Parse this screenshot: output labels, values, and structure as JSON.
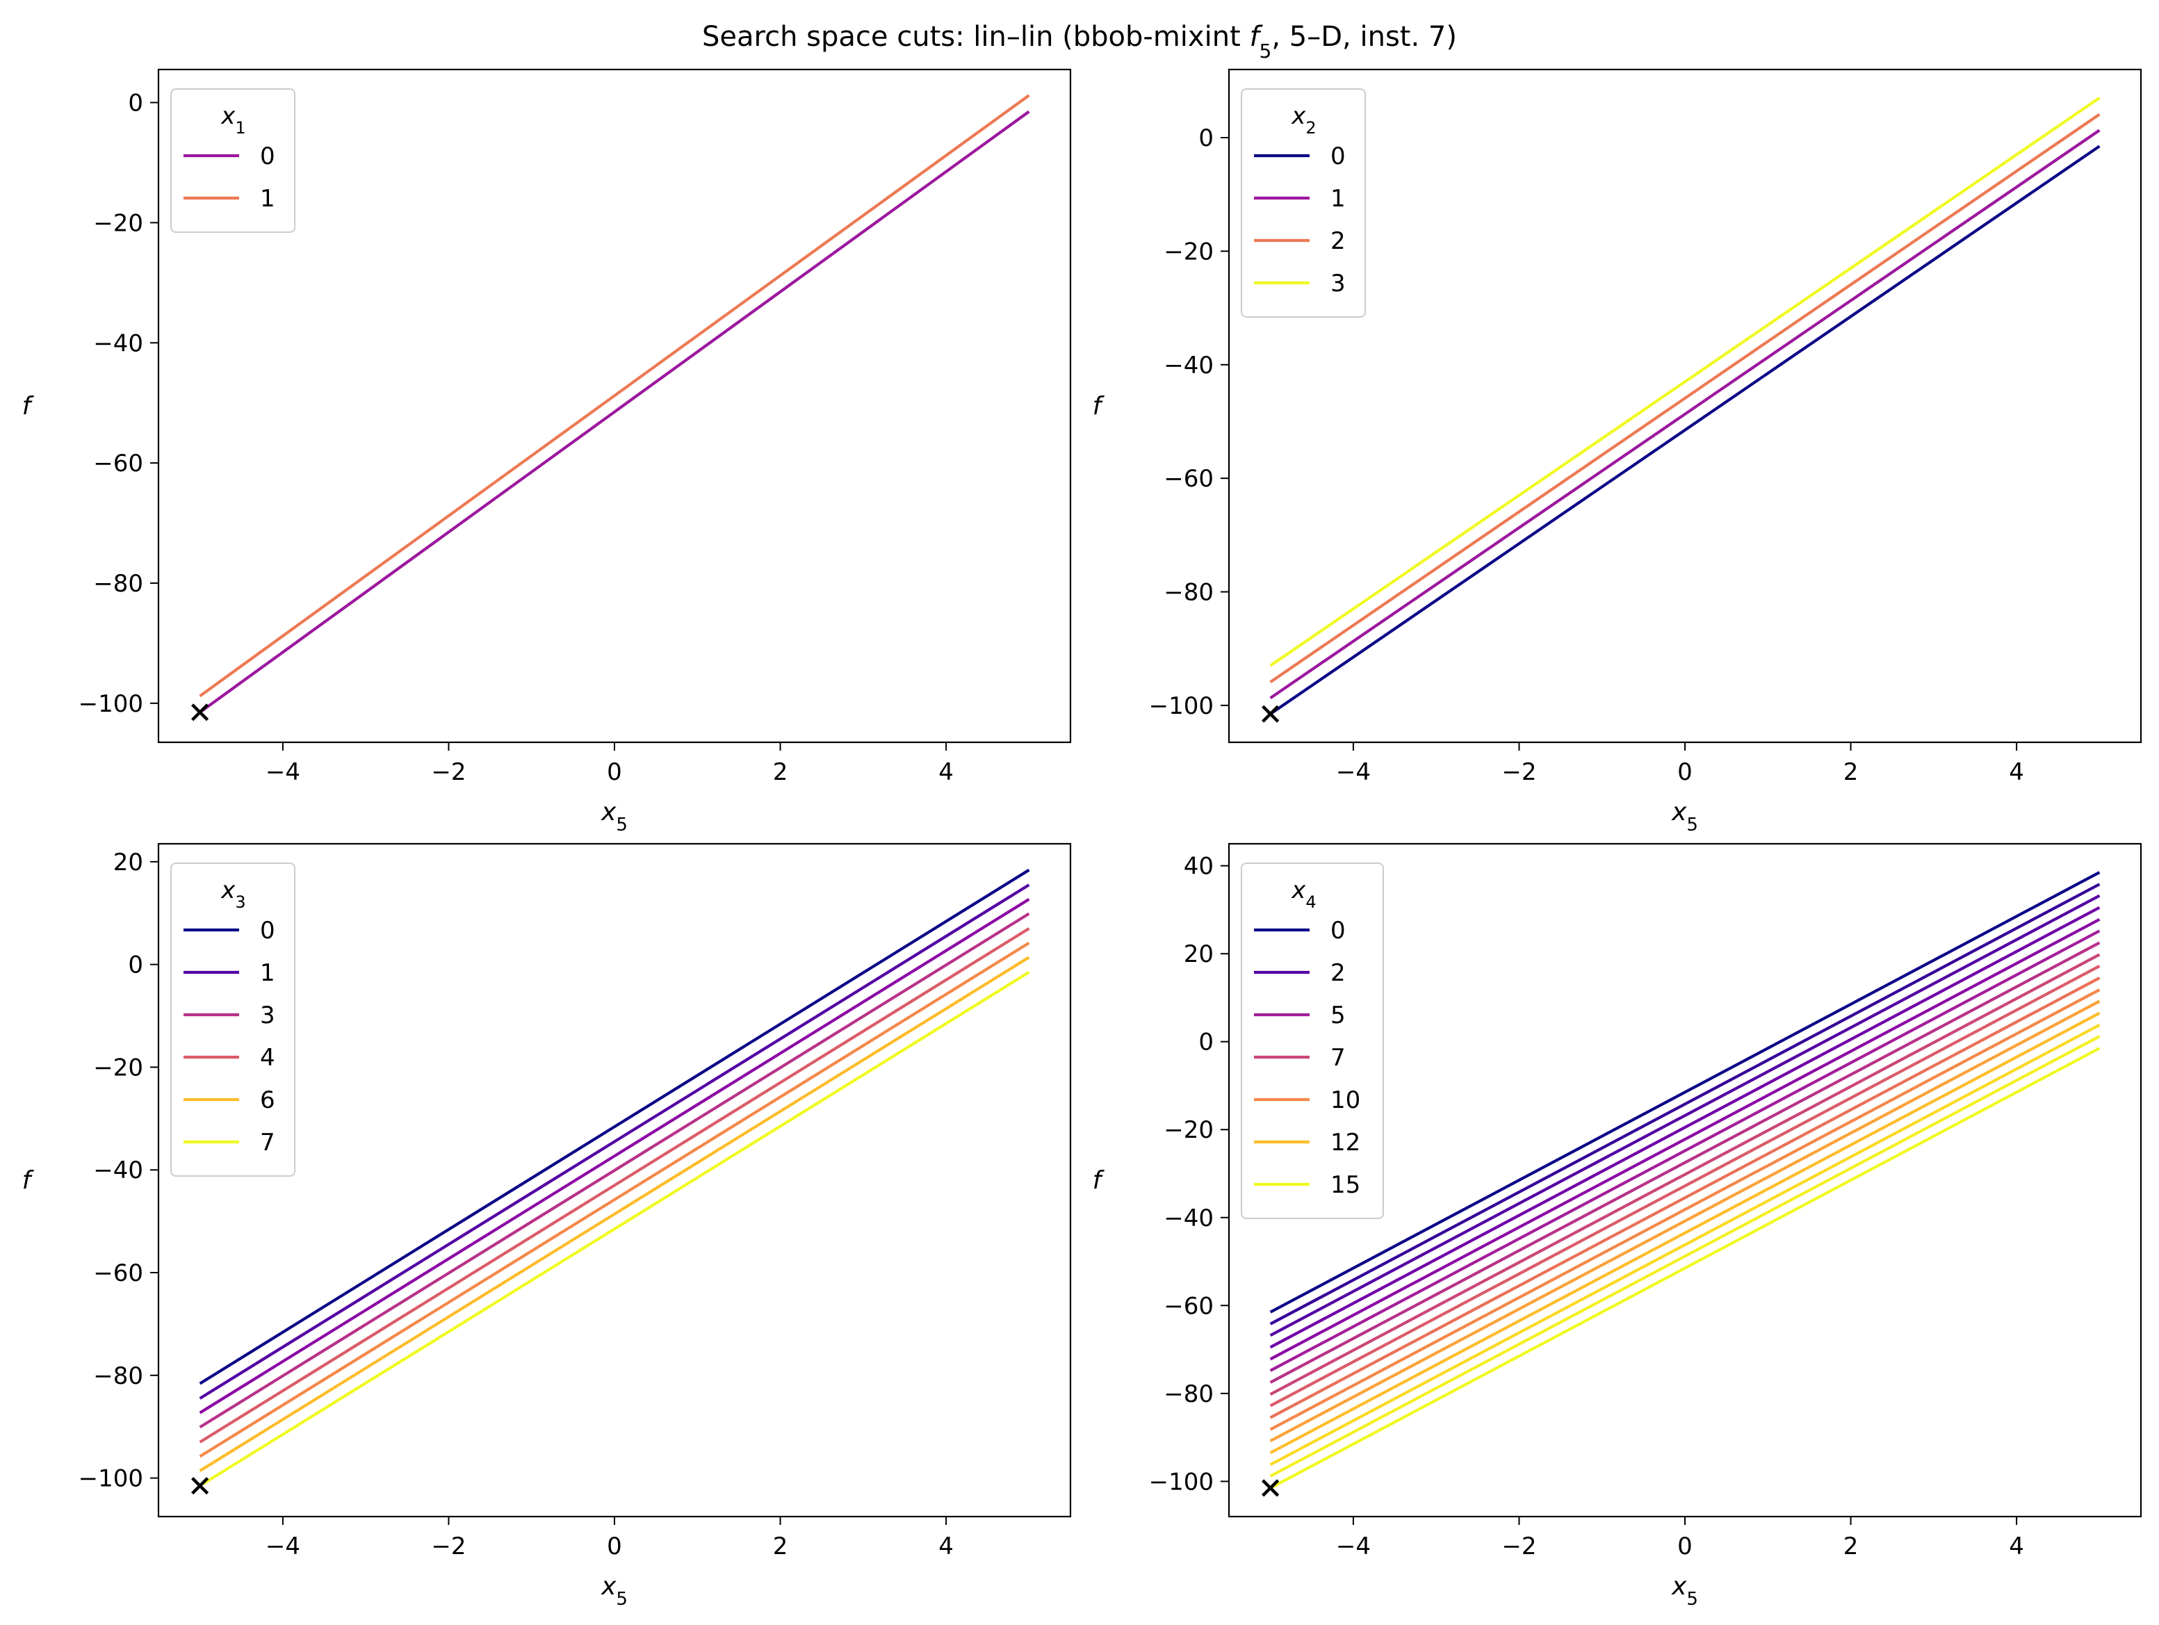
{
  "figure_title": {
    "prefix": "Search space cuts: lin–lin (bbob-mixint ",
    "func": "f",
    "func_sub": "5",
    "suffix": ", 5–D, inst. 7)"
  },
  "chart_data": [
    {
      "type": "line",
      "xlabel": "x",
      "xlabel_sub": "5",
      "ylabel": "f",
      "xlim": [
        -5.5,
        5.5
      ],
      "ylim": [
        -106.5,
        5.5
      ],
      "xticks": [
        -4,
        -2,
        0,
        2,
        4
      ],
      "yticks": [
        -100,
        -80,
        -60,
        -40,
        -20,
        0
      ],
      "legend_title": "x",
      "legend_title_sub": "1",
      "legend_position": "upper left",
      "marker": {
        "symbol": "x",
        "x": -5,
        "y": -101.5,
        "color": "#000000"
      },
      "series": [
        {
          "name": "0",
          "x": [
            -5,
            5
          ],
          "y": [
            -101.5,
            -1.5
          ],
          "color": "#9c179e"
        },
        {
          "name": "1",
          "x": [
            -5,
            5
          ],
          "y": [
            -98.8,
            1.2
          ],
          "color": "#ed7953"
        }
      ]
    },
    {
      "type": "line",
      "xlabel": "x",
      "xlabel_sub": "5",
      "ylabel": "f",
      "xlim": [
        -5.5,
        5.5
      ],
      "ylim": [
        -106.5,
        12
      ],
      "xticks": [
        -4,
        -2,
        0,
        2,
        4
      ],
      "yticks": [
        -100,
        -80,
        -60,
        -40,
        -20,
        0
      ],
      "legend_title": "x",
      "legend_title_sub": "2",
      "legend_position": "upper left",
      "marker": {
        "symbol": "x",
        "x": -5,
        "y": -101.5,
        "color": "#000000"
      },
      "series": [
        {
          "name": "0",
          "x": [
            -5,
            5
          ],
          "y": [
            -101.5,
            -1.5
          ],
          "color": "#0d0887"
        },
        {
          "name": "1",
          "x": [
            -5,
            5
          ],
          "y": [
            -98.7,
            1.3
          ],
          "color": "#9c179e"
        },
        {
          "name": "2",
          "x": [
            -5,
            5
          ],
          "y": [
            -95.9,
            4.1
          ],
          "color": "#ed7953"
        },
        {
          "name": "3",
          "x": [
            -5,
            5
          ],
          "y": [
            -93.0,
            7.0
          ],
          "color": "#f0f921"
        }
      ]
    },
    {
      "type": "line",
      "xlabel": "x",
      "xlabel_sub": "5",
      "ylabel": "f",
      "xlim": [
        -5.5,
        5.5
      ],
      "ylim": [
        -107.5,
        23.5
      ],
      "xticks": [
        -4,
        -2,
        0,
        2,
        4
      ],
      "yticks": [
        -100,
        -80,
        -60,
        -40,
        -20,
        0,
        20
      ],
      "legend_title": "x",
      "legend_title_sub": "3",
      "legend_position": "upper left",
      "marker": {
        "symbol": "x",
        "x": -5,
        "y": -101.5,
        "color": "#000000"
      },
      "series": [
        {
          "name": "0",
          "x": [
            -5,
            5
          ],
          "y": [
            -81.6,
            18.4
          ],
          "color": "#0d0887"
        },
        {
          "name": "1",
          "x": [
            -5,
            5
          ],
          "y": [
            -84.5,
            15.5
          ],
          "color": "#5302a3"
        },
        {
          "name": "",
          "x": [
            -5,
            5
          ],
          "y": [
            -87.3,
            12.7
          ],
          "color": "#8b0aa5"
        },
        {
          "name": "3",
          "x": [
            -5,
            5
          ],
          "y": [
            -90.1,
            9.9
          ],
          "color": "#b83289"
        },
        {
          "name": "4",
          "x": [
            -5,
            5
          ],
          "y": [
            -93.0,
            7.0
          ],
          "color": "#db5c68"
        },
        {
          "name": "",
          "x": [
            -5,
            5
          ],
          "y": [
            -95.8,
            4.2
          ],
          "color": "#f48849"
        },
        {
          "name": "6",
          "x": [
            -5,
            5
          ],
          "y": [
            -98.6,
            1.4
          ],
          "color": "#febc2a"
        },
        {
          "name": "7",
          "x": [
            -5,
            5
          ],
          "y": [
            -101.5,
            -1.5
          ],
          "color": "#f0f921"
        }
      ]
    },
    {
      "type": "line",
      "xlabel": "x",
      "xlabel_sub": "5",
      "ylabel": "f",
      "xlim": [
        -5.5,
        5.5
      ],
      "ylim": [
        -108,
        45
      ],
      "xticks": [
        -4,
        -2,
        0,
        2,
        4
      ],
      "yticks": [
        -100,
        -80,
        -60,
        -40,
        -20,
        0,
        20,
        40
      ],
      "legend_title": "x",
      "legend_title_sub": "4",
      "legend_position": "upper left",
      "marker": {
        "symbol": "x",
        "x": -5,
        "y": -101.5,
        "color": "#000000"
      },
      "series": [
        {
          "name": "0",
          "x": [
            -5,
            5
          ],
          "y": [
            -61.5,
            38.5
          ],
          "color": "#0d0887"
        },
        {
          "name": "",
          "x": [
            -5,
            5
          ],
          "y": [
            -64.2,
            35.8
          ],
          "color": "#350498"
        },
        {
          "name": "2",
          "x": [
            -5,
            5
          ],
          "y": [
            -66.8,
            33.2
          ],
          "color": "#5402a3"
        },
        {
          "name": "",
          "x": [
            -5,
            5
          ],
          "y": [
            -69.5,
            30.5
          ],
          "color": "#7000a8"
        },
        {
          "name": "",
          "x": [
            -5,
            5
          ],
          "y": [
            -72.2,
            27.8
          ],
          "color": "#8b0aa5"
        },
        {
          "name": "5",
          "x": [
            -5,
            5
          ],
          "y": [
            -74.8,
            25.2
          ],
          "color": "#a31e9a"
        },
        {
          "name": "",
          "x": [
            -5,
            5
          ],
          "y": [
            -77.5,
            22.5
          ],
          "color": "#b83289"
        },
        {
          "name": "7",
          "x": [
            -5,
            5
          ],
          "y": [
            -80.2,
            19.8
          ],
          "color": "#cb4679"
        },
        {
          "name": "",
          "x": [
            -5,
            5
          ],
          "y": [
            -82.8,
            17.2
          ],
          "color": "#db5c68"
        },
        {
          "name": "",
          "x": [
            -5,
            5
          ],
          "y": [
            -85.5,
            14.5
          ],
          "color": "#e97158"
        },
        {
          "name": "10",
          "x": [
            -5,
            5
          ],
          "y": [
            -88.2,
            11.8
          ],
          "color": "#f48849"
        },
        {
          "name": "",
          "x": [
            -5,
            5
          ],
          "y": [
            -90.8,
            9.2
          ],
          "color": "#fba238"
        },
        {
          "name": "12",
          "x": [
            -5,
            5
          ],
          "y": [
            -93.5,
            6.5
          ],
          "color": "#febd2a"
        },
        {
          "name": "",
          "x": [
            -5,
            5
          ],
          "y": [
            -96.2,
            3.8
          ],
          "color": "#fada24"
        },
        {
          "name": "",
          "x": [
            -5,
            5
          ],
          "y": [
            -98.8,
            1.2
          ],
          "color": "#f5f022"
        },
        {
          "name": "15",
          "x": [
            -5,
            5
          ],
          "y": [
            -101.5,
            -1.5
          ],
          "color": "#f0f921"
        }
      ]
    }
  ]
}
